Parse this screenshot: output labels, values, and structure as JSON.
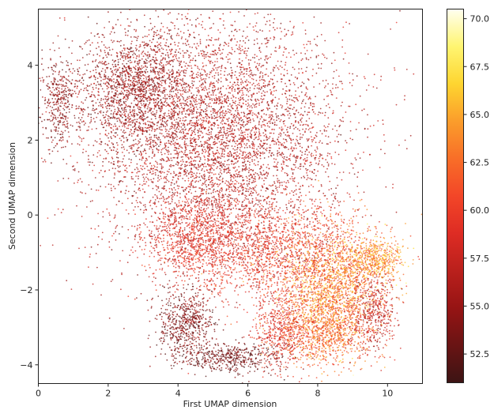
{
  "chart_data": {
    "type": "scatter",
    "xlabel": "First UMAP dimension",
    "ylabel": "Second UMAP dimension",
    "xlim": [
      0,
      11
    ],
    "ylim": [
      -4.5,
      5.5
    ],
    "xticks": [
      0,
      2,
      4,
      6,
      8,
      10
    ],
    "yticks": [
      -4,
      -2,
      0,
      2,
      4
    ],
    "grid": false,
    "colormap": "hot",
    "colorbar": {
      "range": [
        51.0,
        70.5
      ],
      "ticks": [
        52.5,
        55.0,
        57.5,
        60.0,
        62.5,
        65.0,
        67.5,
        70.0
      ]
    },
    "point_clusters": [
      {
        "cx": 5.2,
        "cy": 2.0,
        "sx": 2.1,
        "sy": 1.9,
        "n": 5200,
        "value": 56.5,
        "value_sd": 1.5
      },
      {
        "cx": 2.8,
        "cy": 3.4,
        "sx": 1.0,
        "sy": 0.9,
        "n": 1600,
        "value": 55.0,
        "value_sd": 1.5
      },
      {
        "cx": 0.6,
        "cy": 3.0,
        "sx": 0.3,
        "sy": 0.7,
        "n": 350,
        "value": 54.5,
        "value_sd": 1.2
      },
      {
        "cx": 4.5,
        "cy": -0.6,
        "sx": 0.8,
        "sy": 0.7,
        "n": 900,
        "value": 59.0,
        "value_sd": 1.5
      },
      {
        "cx": 6.6,
        "cy": -0.9,
        "sx": 1.5,
        "sy": 0.8,
        "n": 1500,
        "value": 59.5,
        "value_sd": 1.8
      },
      {
        "cx": 8.4,
        "cy": -2.0,
        "sx": 0.9,
        "sy": 1.0,
        "n": 2000,
        "value": 63.0,
        "value_sd": 2.5
      },
      {
        "cx": 9.6,
        "cy": -1.2,
        "sx": 0.5,
        "sy": 0.3,
        "n": 500,
        "value": 64.0,
        "value_sd": 2.0
      },
      {
        "cx": 4.2,
        "cy": -2.9,
        "sx": 0.5,
        "sy": 0.5,
        "n": 600,
        "value": 54.0,
        "value_sd": 1.5
      },
      {
        "cx": 5.5,
        "cy": -3.8,
        "sx": 0.9,
        "sy": 0.25,
        "n": 500,
        "value": 53.5,
        "value_sd": 1.2
      },
      {
        "cx": 6.9,
        "cy": -3.1,
        "sx": 0.4,
        "sy": 0.6,
        "n": 450,
        "value": 59.0,
        "value_sd": 1.5
      },
      {
        "cx": 8.2,
        "cy": -3.2,
        "sx": 0.7,
        "sy": 0.5,
        "n": 700,
        "value": 62.0,
        "value_sd": 2.0
      },
      {
        "cx": 9.6,
        "cy": -2.6,
        "sx": 0.4,
        "sy": 0.6,
        "n": 400,
        "value": 57.5,
        "value_sd": 1.5
      }
    ]
  }
}
